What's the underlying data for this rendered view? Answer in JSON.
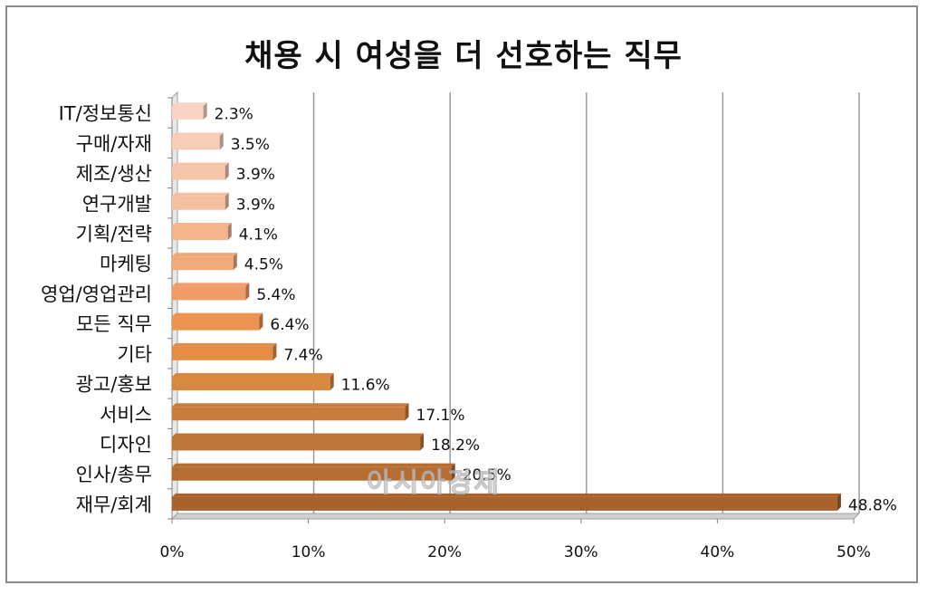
{
  "chart_data": {
    "type": "bar",
    "orientation": "horizontal",
    "title": "채용 시 여성을 더 선호하는 직무",
    "categories": [
      "IT/정보통신",
      "구매/자재",
      "제조/생산",
      "연구개발",
      "기획/전략",
      "마케팅",
      "영업/영업관리",
      "모든 직무",
      "기타",
      "광고/홍보",
      "서비스",
      "디자인",
      "인사/총무",
      "재무/회계"
    ],
    "values": [
      2.3,
      3.5,
      3.9,
      3.9,
      4.1,
      4.5,
      5.4,
      6.4,
      7.4,
      11.6,
      17.1,
      18.2,
      20.5,
      48.8
    ],
    "value_labels": [
      "2.3%",
      "3.5%",
      "3.9%",
      "3.9%",
      "4.1%",
      "4.5%",
      "5.4%",
      "6.4%",
      "7.4%",
      "11.6%",
      "17.1%",
      "18.2%",
      "20.5%",
      "48.8%"
    ],
    "xlim": [
      0,
      50
    ],
    "x_ticks": [
      "0%",
      "10%",
      "20%",
      "30%",
      "40%",
      "50%"
    ],
    "grid": true,
    "bar_colors": [
      "#f9d3c4",
      "#f8cdb8",
      "#f6c4a8",
      "#f5bfa0",
      "#f3b48c",
      "#f1a87a",
      "#f09c66",
      "#ec9350",
      "#e58c45",
      "#d98840",
      "#c97c3c",
      "#bf7536",
      "#b66d31",
      "#a9622b"
    ]
  },
  "watermark": "아시아경제"
}
